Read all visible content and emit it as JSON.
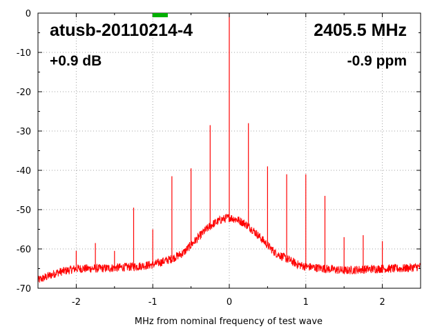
{
  "chart_data": {
    "type": "line",
    "title": "",
    "annotations": {
      "device": "atusb-20110214-4",
      "frequency": "2405.5 MHz",
      "level": "+0.9 dB",
      "offset": "-0.9 ppm"
    },
    "xlabel": "MHz from nominal frequency of test wave",
    "ylabel": "",
    "xlim": [
      -2.5,
      2.5
    ],
    "ylim": [
      -70,
      0
    ],
    "x_ticks": [
      -2,
      -1,
      0,
      1,
      2
    ],
    "x_tick_labels": [
      "-2",
      "-1",
      "0",
      "1",
      "2"
    ],
    "y_ticks": [
      0,
      -10,
      -20,
      -30,
      -40,
      -50,
      -60,
      -70
    ],
    "y_tick_labels": [
      "0",
      "-10",
      "-20",
      "-30",
      "-40",
      "-50",
      "-60",
      "-70"
    ],
    "grid": true,
    "series": [
      {
        "color": "#ff0000",
        "noise_floor": {
          "x": [
            -2.5,
            -2.25,
            -2.0,
            -1.75,
            -1.5,
            -1.25,
            -1.0,
            -0.75,
            -0.6,
            -0.5,
            -0.4,
            -0.3,
            -0.2,
            -0.1,
            0.0,
            0.1,
            0.2,
            0.3,
            0.4,
            0.5,
            0.6,
            0.75,
            0.9,
            1.0,
            1.25,
            1.5,
            1.75,
            2.0,
            2.25,
            2.5
          ],
          "y": [
            -68,
            -66,
            -65,
            -65,
            -64.8,
            -64.5,
            -64,
            -62.5,
            -61,
            -59,
            -57,
            -55,
            -53.5,
            -52.5,
            -52,
            -52.5,
            -53.5,
            -55,
            -57,
            -59,
            -61,
            -62.5,
            -64,
            -64.5,
            -65,
            -65.5,
            -65.2,
            -65,
            -65,
            -64.5
          ]
        },
        "spurs": {
          "x": [
            -2.0,
            -1.75,
            -1.5,
            -1.25,
            -1.0,
            -0.75,
            -0.5,
            -0.25,
            0.0,
            0.25,
            0.5,
            0.75,
            1.0,
            1.25,
            1.5,
            1.75,
            2.0
          ],
          "y": [
            -60.5,
            -58.5,
            -60.5,
            -49.5,
            -55,
            -41.5,
            -39.5,
            -28.5,
            0,
            -28,
            -39,
            -41,
            -41,
            -46.5,
            -57,
            -56.5,
            -58
          ]
        }
      }
    ]
  },
  "legend_swatch_color": "#00b000"
}
